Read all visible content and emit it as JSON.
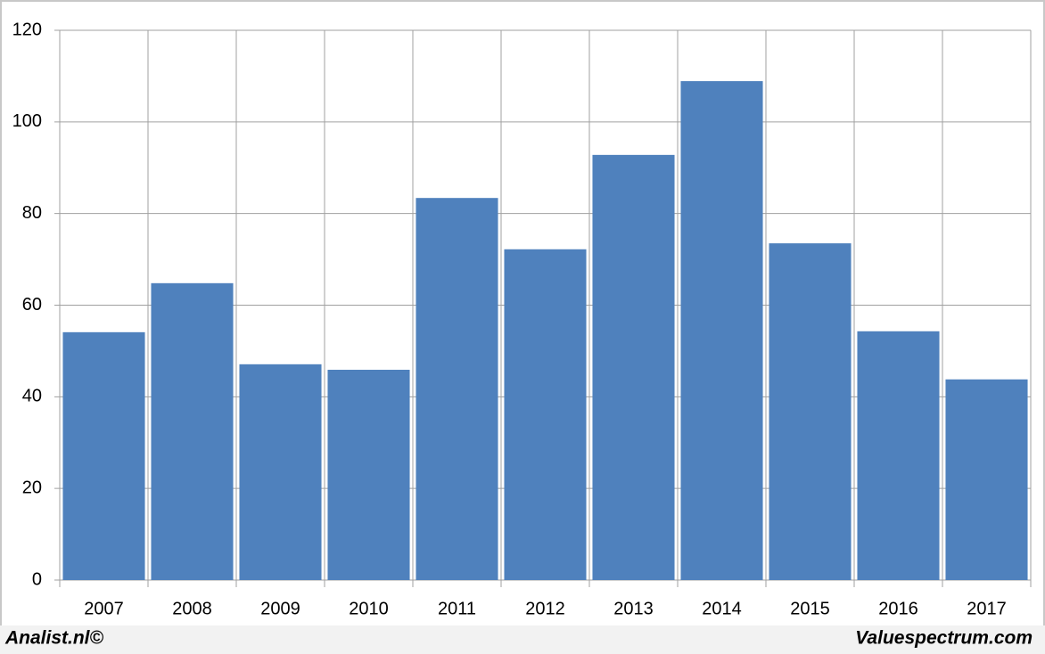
{
  "chart_data": {
    "type": "bar",
    "categories": [
      "2007",
      "2008",
      "2009",
      "2010",
      "2011",
      "2012",
      "2013",
      "2014",
      "2015",
      "2016",
      "2017"
    ],
    "values": [
      54.1,
      64.8,
      47.1,
      45.9,
      83.4,
      72.2,
      92.8,
      108.9,
      73.5,
      54.3,
      43.8
    ],
    "color": "#4f81bd",
    "ylim": [
      0,
      120
    ],
    "yticks": [
      0,
      20,
      40,
      60,
      80,
      100,
      120
    ],
    "grid": true,
    "annotations": [
      "Analist.nl©",
      "Valuespectrum.com"
    ]
  }
}
